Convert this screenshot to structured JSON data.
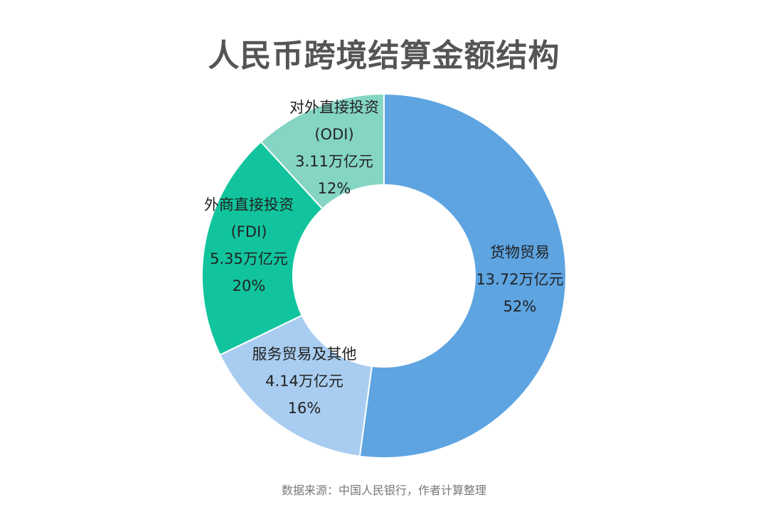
{
  "title": "人民币跨境结算金额结构",
  "source": "数据来源：中国人民银行，作者计算整理",
  "chart_data": {
    "type": "pie",
    "subtype": "donut",
    "unit": "万亿元",
    "slices": [
      {
        "name": "货物贸易",
        "value": 13.72,
        "value_label": "13.72万亿元",
        "percent": "52%",
        "color": "#5da4e1"
      },
      {
        "name": "服务贸易及其他",
        "value": 4.14,
        "value_label": "4.14万亿元",
        "percent": "16%",
        "color": "#a9cdf0"
      },
      {
        "name": "外商直接投资",
        "name_line2": "(FDI)",
        "value": 5.35,
        "value_label": "5.35万亿元",
        "percent": "20%",
        "color": "#11c49d"
      },
      {
        "name": "对外直接投资",
        "name_line2": "(ODI)",
        "value": 3.11,
        "value_label": "3.11万亿元",
        "percent": "12%",
        "color": "#85d5c5"
      }
    ],
    "legend": "none"
  }
}
